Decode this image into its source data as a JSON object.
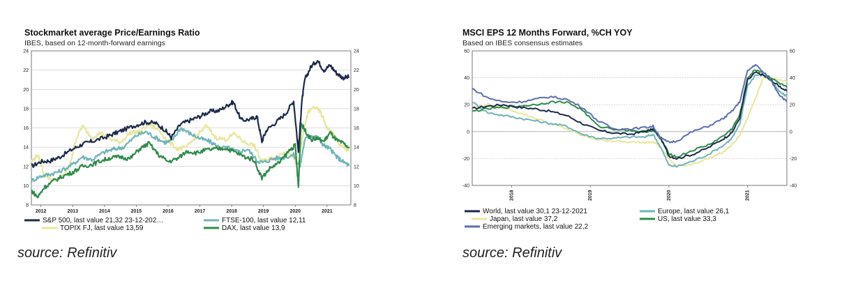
{
  "chart_data": [
    {
      "type": "line",
      "title": "Stockmarket average Price/Earnings Ratio",
      "subtitle": "IBES,  based on 12-month-forward earnings",
      "xlim": [
        2011.7,
        2021.75
      ],
      "ylim": [
        8,
        24
      ],
      "yticks": [
        "8",
        "10",
        "12",
        "14",
        "16",
        "18",
        "20",
        "22",
        "24"
      ],
      "xticks": [
        "2012",
        "2013",
        "2014",
        "2015",
        "2016",
        "2017",
        "2018",
        "2019",
        "2020",
        "2021"
      ],
      "series": [
        {
          "name": "S&P 500, last value 21,32 23-12-202…",
          "color": "#1b2a4a",
          "x": [
            2011.7,
            2012.0,
            2012.3,
            2012.6,
            2013.0,
            2013.3,
            2013.6,
            2014.0,
            2014.3,
            2014.6,
            2015.0,
            2015.3,
            2015.6,
            2015.9,
            2016.1,
            2016.4,
            2016.7,
            2017.0,
            2017.3,
            2017.6,
            2017.9,
            2018.05,
            2018.3,
            2018.6,
            2018.8,
            2018.95,
            2019.1,
            2019.4,
            2019.7,
            2019.95,
            2020.1,
            2020.2,
            2020.3,
            2020.5,
            2020.7,
            2020.9,
            2021.1,
            2021.3,
            2021.5,
            2021.7
          ],
          "y": [
            12.0,
            12.5,
            12.6,
            13.0,
            13.8,
            14.3,
            14.6,
            15.0,
            15.4,
            15.8,
            16.3,
            16.6,
            16.5,
            15.8,
            15.0,
            16.4,
            16.8,
            17.2,
            17.7,
            17.8,
            18.4,
            18.7,
            16.8,
            16.9,
            17.2,
            14.6,
            15.8,
            16.6,
            17.5,
            18.8,
            13.5,
            18.5,
            21.0,
            22.4,
            23.0,
            22.0,
            22.5,
            21.7,
            21.2,
            21.3
          ]
        },
        {
          "name": "FTSE-100, last value 12,11",
          "color": "#6fb3b8",
          "x": [
            2011.7,
            2012.0,
            2012.3,
            2012.6,
            2013.0,
            2013.3,
            2013.6,
            2014.0,
            2014.3,
            2014.6,
            2015.0,
            2015.3,
            2015.6,
            2015.9,
            2016.1,
            2016.4,
            2016.7,
            2017.0,
            2017.3,
            2017.6,
            2017.9,
            2018.2,
            2018.5,
            2018.8,
            2019.0,
            2019.3,
            2019.6,
            2019.95,
            2020.15,
            2020.3,
            2020.5,
            2020.7,
            2020.9,
            2021.1,
            2021.3,
            2021.5,
            2021.7
          ],
          "y": [
            10.5,
            11.0,
            11.2,
            11.5,
            12.2,
            13.0,
            12.7,
            13.5,
            13.8,
            14.0,
            15.2,
            15.6,
            15.0,
            14.5,
            14.6,
            16.0,
            15.4,
            14.9,
            14.6,
            14.0,
            13.9,
            13.5,
            13.8,
            12.6,
            12.4,
            12.8,
            12.9,
            13.2,
            12.0,
            14.8,
            15.2,
            15.0,
            14.2,
            13.8,
            13.0,
            12.5,
            12.1
          ]
        },
        {
          "name": "TOPIX FJ, last value 13,59",
          "color": "#e8e69a",
          "x": [
            2011.7,
            2011.9,
            2012.1,
            2012.4,
            2012.7,
            2012.9,
            2013.1,
            2013.3,
            2013.6,
            2013.9,
            2014.2,
            2014.5,
            2014.8,
            2015.1,
            2015.4,
            2015.7,
            2016.0,
            2016.3,
            2016.6,
            2016.9,
            2017.2,
            2017.5,
            2017.8,
            2018.1,
            2018.4,
            2018.7,
            2018.95,
            2019.2,
            2019.5,
            2019.8,
            2020.1,
            2020.25,
            2020.4,
            2020.6,
            2020.8,
            2021.0,
            2021.2,
            2021.4,
            2021.6,
            2021.7
          ],
          "y": [
            12.5,
            13.2,
            11.2,
            10.5,
            11.0,
            12.0,
            14.8,
            16.2,
            15.0,
            15.5,
            14.8,
            14.5,
            15.5,
            15.6,
            16.4,
            15.8,
            14.6,
            13.8,
            14.0,
            15.2,
            16.2,
            15.0,
            14.8,
            15.4,
            14.5,
            14.2,
            12.5,
            12.8,
            13.2,
            13.6,
            12.0,
            15.5,
            17.6,
            18.2,
            17.6,
            16.0,
            15.4,
            14.2,
            13.8,
            13.6
          ]
        },
        {
          "name": "DAX, last value 13,9",
          "color": "#2e8b4a",
          "x": [
            2011.7,
            2011.9,
            2012.1,
            2012.4,
            2012.7,
            2013.0,
            2013.3,
            2013.6,
            2013.9,
            2014.2,
            2014.5,
            2014.8,
            2015.1,
            2015.4,
            2015.7,
            2016.0,
            2016.3,
            2016.6,
            2016.9,
            2017.2,
            2017.5,
            2017.8,
            2018.1,
            2018.4,
            2018.7,
            2018.95,
            2019.2,
            2019.5,
            2019.8,
            2020.0,
            2020.1,
            2020.18,
            2020.3,
            2020.5,
            2020.7,
            2020.9,
            2021.1,
            2021.3,
            2021.5,
            2021.7
          ],
          "y": [
            9.5,
            8.8,
            9.8,
            10.5,
            11.0,
            11.4,
            12.0,
            12.2,
            12.6,
            12.9,
            13.0,
            12.8,
            13.8,
            14.4,
            13.2,
            12.5,
            12.8,
            13.6,
            13.4,
            13.7,
            13.8,
            13.9,
            13.5,
            13.0,
            12.7,
            10.8,
            11.8,
            12.4,
            13.6,
            14.2,
            9.8,
            16.5,
            15.8,
            14.8,
            14.9,
            14.6,
            15.5,
            14.7,
            14.4,
            13.9
          ]
        }
      ],
      "legend": "bottom"
    },
    {
      "type": "line",
      "title": "MSCI EPS 12 Months Forward, %CH YOY",
      "subtitle": "Based on IBES consensus estimates",
      "xlim": [
        2017.5,
        2021.5
      ],
      "ylim": [
        -40,
        60
      ],
      "yticks": [
        "-40",
        "-20",
        "0",
        "20",
        "40",
        "60"
      ],
      "xticks": [
        "2018",
        "2019",
        "2020",
        "2021"
      ],
      "series": [
        {
          "name": "World, last value 30,1 23-12-2021",
          "color": "#1b2a4a",
          "x": [
            2017.5,
            2017.7,
            2017.9,
            2018.1,
            2018.3,
            2018.5,
            2018.7,
            2018.9,
            2019.1,
            2019.3,
            2019.5,
            2019.7,
            2019.8,
            2019.9,
            2020.0,
            2020.1,
            2020.3,
            2020.5,
            2020.7,
            2020.8,
            2020.9,
            2021.0,
            2021.1,
            2021.2,
            2021.3,
            2021.4,
            2021.5
          ],
          "y": [
            17,
            19,
            20,
            18,
            17,
            15,
            12,
            6,
            1,
            -1,
            -2,
            0,
            2,
            -5,
            -18,
            -20,
            -17,
            -12,
            -5,
            -1,
            10,
            38,
            44,
            42,
            38,
            34,
            30
          ]
        },
        {
          "name": "Europe, last value 26,1",
          "color": "#6fb3b8",
          "x": [
            2017.5,
            2017.7,
            2017.9,
            2018.1,
            2018.3,
            2018.5,
            2018.7,
            2018.9,
            2019.1,
            2019.3,
            2019.5,
            2019.7,
            2019.8,
            2019.9,
            2020.0,
            2020.1,
            2020.3,
            2020.5,
            2020.7,
            2020.8,
            2020.9,
            2021.0,
            2021.1,
            2021.2,
            2021.3,
            2021.4,
            2021.5
          ],
          "y": [
            22,
            14,
            12,
            10,
            8,
            6,
            4,
            -2,
            -5,
            -5,
            -4,
            -4,
            -2,
            -12,
            -25,
            -26,
            -22,
            -17,
            -10,
            -5,
            5,
            34,
            42,
            42,
            38,
            30,
            26
          ]
        },
        {
          "name": "Japan, last value 37,2",
          "color": "#e8e69a",
          "x": [
            2017.5,
            2017.7,
            2017.9,
            2018.1,
            2018.3,
            2018.5,
            2018.7,
            2018.9,
            2019.1,
            2019.3,
            2019.5,
            2019.7,
            2019.8,
            2019.9,
            2020.0,
            2020.1,
            2020.3,
            2020.5,
            2020.7,
            2020.8,
            2020.9,
            2021.0,
            2021.1,
            2021.2,
            2021.3,
            2021.4,
            2021.5
          ],
          "y": [
            18,
            20,
            18,
            14,
            10,
            6,
            2,
            -3,
            -6,
            -7,
            -8,
            -8,
            -7,
            -12,
            -20,
            -26,
            -24,
            -20,
            -15,
            -10,
            -3,
            10,
            25,
            40,
            40,
            38,
            37
          ]
        },
        {
          "name": "Emerging markets, last value 22,2",
          "color": "#5b6fae",
          "x": [
            2017.5,
            2017.7,
            2017.9,
            2018.1,
            2018.3,
            2018.5,
            2018.7,
            2018.9,
            2019.1,
            2019.3,
            2019.5,
            2019.7,
            2019.8,
            2019.9,
            2020.0,
            2020.1,
            2020.3,
            2020.5,
            2020.7,
            2020.8,
            2020.9,
            2021.0,
            2021.1,
            2021.2,
            2021.3,
            2021.4,
            2021.5
          ],
          "y": [
            32,
            25,
            22,
            22,
            24,
            26,
            24,
            18,
            8,
            2,
            2,
            3,
            4,
            -5,
            -8,
            -7,
            0,
            4,
            10,
            15,
            22,
            45,
            50,
            44,
            38,
            28,
            22
          ]
        },
        {
          "name": "US, last value 33,3",
          "color": "#2e8b4a",
          "x": [
            2017.5,
            2017.7,
            2017.9,
            2018.1,
            2018.3,
            2018.5,
            2018.7,
            2018.9,
            2019.1,
            2019.3,
            2019.5,
            2019.7,
            2019.8,
            2019.9,
            2020.0,
            2020.1,
            2020.3,
            2020.5,
            2020.7,
            2020.8,
            2020.9,
            2021.0,
            2021.1,
            2021.2,
            2021.3,
            2021.4,
            2021.5
          ],
          "y": [
            15,
            17,
            18,
            19,
            20,
            22,
            22,
            16,
            4,
            2,
            1,
            0,
            1,
            -6,
            -16,
            -19,
            -14,
            -10,
            -3,
            2,
            12,
            40,
            46,
            44,
            40,
            36,
            33
          ]
        }
      ],
      "legend": "bottom"
    }
  ],
  "sources": [
    "source: Refinitiv",
    "source: Refinitiv"
  ]
}
